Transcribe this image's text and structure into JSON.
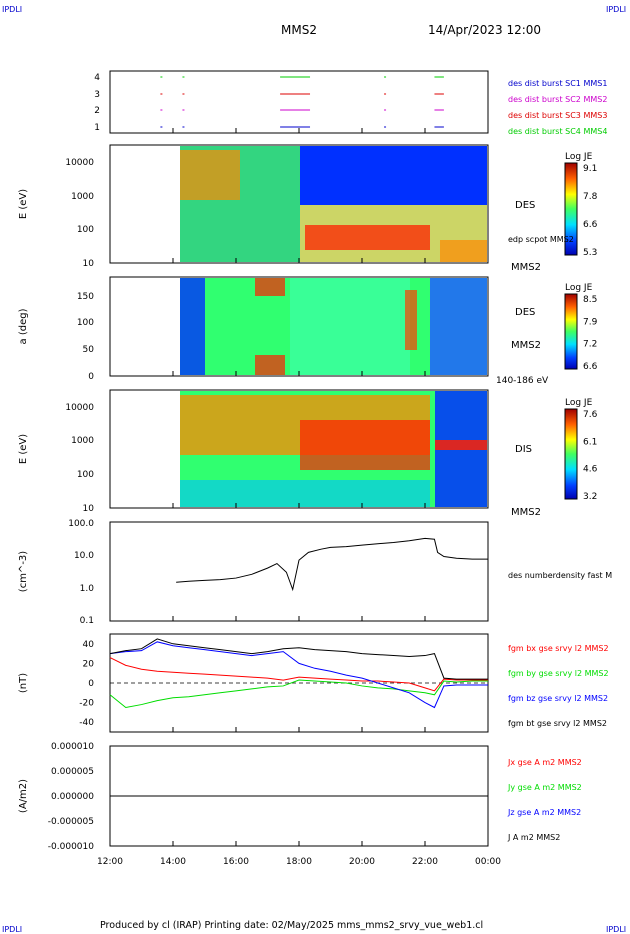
{
  "header": {
    "logo_left": "IPDLI",
    "logo_right": "IPDLI",
    "title": "MMS2",
    "datetime": "14/Apr/2023 12:00"
  },
  "footer": {
    "credit": "Produced by cl (IRAP)   Printing date: 02/May/2025   mms_mms2_srvy_vue_web1.cl",
    "logo_left": "IPDLI",
    "logo_right": "IPDLI"
  },
  "colors": {
    "mms1": "#0000cc",
    "mms2": "#cc00cc",
    "mms3": "#dd0000",
    "mms4": "#00cc00",
    "bx": "#ff0000",
    "by": "#00dd00",
    "bz": "#0000ff",
    "bt": "#000000"
  },
  "chart_data": [
    {
      "type": "scatter",
      "panel": "burst",
      "y_ticks": [
        "4",
        "3",
        "2",
        "1"
      ],
      "legend": [
        "des dist burst SC1 MMS1",
        "des dist burst SC2 MMS2",
        "des dist burst SC3 MMS3",
        "des dist burst SC4 MMS4"
      ],
      "legend_colors": [
        "#0000cc",
        "#cc00cc",
        "#dd0000",
        "#00cc00"
      ],
      "intervals_hours": [
        [
          13.6,
          13.65
        ],
        [
          14.3,
          14.35
        ],
        [
          17.4,
          18.35
        ],
        [
          20.7,
          20.75
        ],
        [
          22.3,
          22.6
        ]
      ]
    },
    {
      "type": "heatmap",
      "panel": "des_energy",
      "ylabel": "E (eV)",
      "y_ticks": [
        "10000",
        "1000",
        "100",
        "10"
      ],
      "right_label": "DES",
      "right_sub": "edp scpot MMS2",
      "right_bottom": "MMS2",
      "colorbar": {
        "title": "Log JE",
        "ticks": [
          "9.1",
          "7.8",
          "6.6",
          "5.3"
        ]
      }
    },
    {
      "type": "heatmap",
      "panel": "des_pitch",
      "ylabel": "a (deg)",
      "y_ticks": [
        "150",
        "100",
        "50",
        "0"
      ],
      "right_label": "DES",
      "right_sub": "MMS2",
      "right_bottom": "140-186 eV",
      "colorbar": {
        "title": "Log JE",
        "ticks": [
          "8.5",
          "7.9",
          "7.2",
          "6.6"
        ]
      }
    },
    {
      "type": "heatmap",
      "panel": "dis_energy",
      "ylabel": "E (eV)",
      "y_ticks": [
        "10000",
        "1000",
        "100",
        "10"
      ],
      "right_label": "DIS",
      "right_bottom": "MMS2",
      "colorbar": {
        "title": "Log JE",
        "ticks": [
          "7.6",
          "6.1",
          "4.6",
          "3.2"
        ]
      }
    },
    {
      "type": "line",
      "panel": "density",
      "ylabel": "(cm^-3)",
      "y_ticks": [
        "100.0",
        "10.0",
        "1.0",
        "0.1"
      ],
      "legend": [
        "des numberdensity fast M"
      ],
      "x_hours": [
        14.1,
        14.5,
        15.0,
        15.5,
        16.0,
        16.5,
        17.0,
        17.3,
        17.6,
        17.8,
        18.0,
        18.3,
        18.7,
        19.0,
        19.5,
        20.0,
        20.5,
        21.0,
        21.5,
        22.0,
        22.3,
        22.4,
        22.6,
        23.0,
        23.5,
        24.0
      ],
      "y": [
        1.5,
        1.6,
        1.7,
        1.8,
        2.0,
        2.6,
        4.0,
        5.5,
        3.0,
        0.9,
        7.0,
        12.0,
        15.0,
        17.0,
        18.0,
        20.0,
        22.0,
        24.0,
        27.0,
        32.0,
        30.0,
        12.0,
        9.0,
        8.0,
        7.5,
        7.5
      ]
    },
    {
      "type": "line",
      "panel": "fgm",
      "ylabel": "(nT)",
      "y_ticks": [
        "40",
        "20",
        "0",
        "-20",
        "-40"
      ],
      "ylim": [
        -50,
        50
      ],
      "legend": [
        "fgm bx gse srvy l2 MMS2",
        "fgm by gse srvy l2 MMS2",
        "fgm bz gse srvy l2 MMS2",
        "fgm bt gse srvy l2 MMS2"
      ],
      "x_hours": [
        12.0,
        12.5,
        13.0,
        13.5,
        14.0,
        14.5,
        15.0,
        15.5,
        16.0,
        16.5,
        17.0,
        17.5,
        18.0,
        18.5,
        19.0,
        19.5,
        20.0,
        20.5,
        21.0,
        21.5,
        22.0,
        22.3,
        22.6,
        23.0,
        23.5,
        24.0
      ],
      "series": [
        {
          "name": "fgm bx gse srvy l2 MMS2",
          "values": [
            26,
            18,
            14,
            12,
            11,
            10,
            9,
            8,
            7,
            6,
            5,
            3,
            6,
            5,
            4,
            3,
            2,
            2,
            1,
            0,
            -5,
            -8,
            4,
            3,
            3,
            3
          ]
        },
        {
          "name": "fgm by gse srvy l2 MMS2",
          "values": [
            -12,
            -25,
            -22,
            -18,
            -15,
            -14,
            -12,
            -10,
            -8,
            -6,
            -4,
            -3,
            3,
            2,
            1,
            0,
            -3,
            -5,
            -6,
            -8,
            -10,
            -12,
            2,
            1,
            2,
            2
          ]
        },
        {
          "name": "fgm bz gse srvy l2 MMS2",
          "values": [
            30,
            32,
            33,
            42,
            38,
            36,
            34,
            32,
            30,
            28,
            30,
            32,
            20,
            15,
            12,
            8,
            5,
            0,
            -5,
            -10,
            -20,
            -25,
            -3,
            -2,
            -2,
            -2
          ]
        },
        {
          "name": "fgm bt gse srvy l2 MMS2",
          "values": [
            30,
            33,
            35,
            45,
            40,
            38,
            36,
            34,
            32,
            30,
            32,
            35,
            36,
            34,
            33,
            32,
            30,
            29,
            28,
            27,
            28,
            30,
            5,
            4,
            4,
            4
          ]
        }
      ]
    },
    {
      "type": "line",
      "panel": "current",
      "ylabel": "(A/m2)",
      "y_ticks": [
        "0.000010",
        "0.000005",
        "0.000000",
        "-0.000005",
        "-0.000010"
      ],
      "legend": [
        "Jx gse A m2 MMS2",
        "Jy gse A m2 MMS2",
        "Jz gse A m2 MMS2",
        "J A m2 MMS2"
      ],
      "x_ticks": [
        "12:00",
        "14:00",
        "16:00",
        "18:00",
        "20:00",
        "22:00",
        "00:00"
      ]
    }
  ]
}
